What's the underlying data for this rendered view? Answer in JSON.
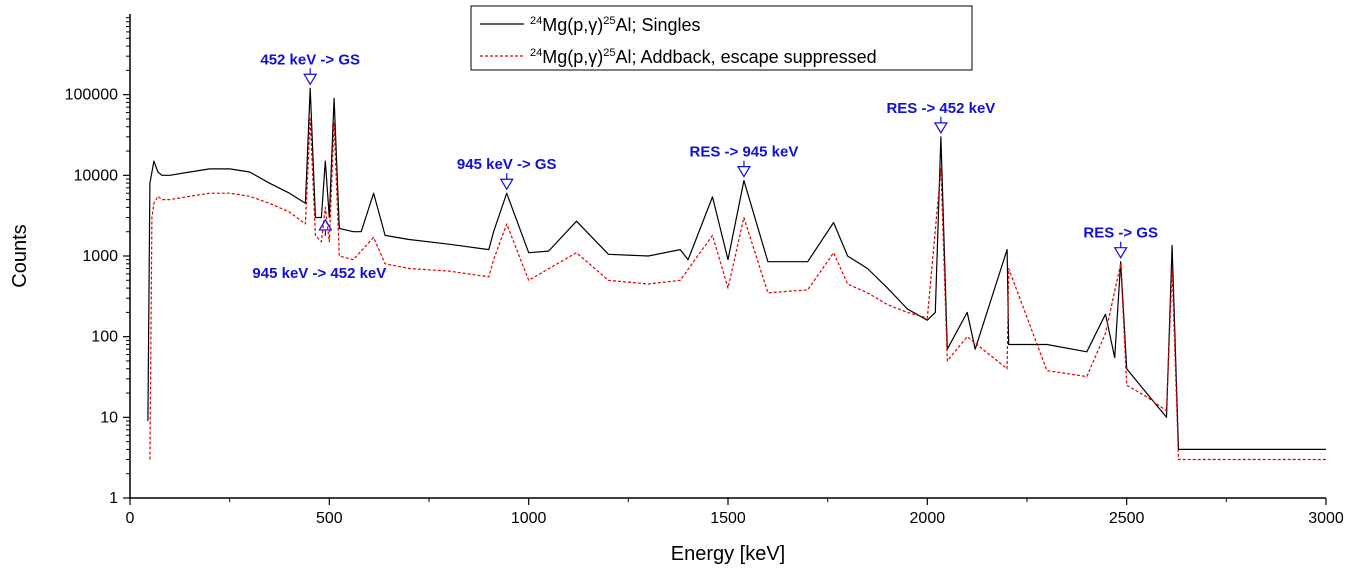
{
  "chart_data": {
    "type": "line",
    "xlabel": "Energy [keV]",
    "ylabel": "Counts",
    "xlim": [
      0,
      3000
    ],
    "ylim": [
      1,
      1000000
    ],
    "yscale": "log",
    "xticks": [
      0,
      500,
      1000,
      1500,
      2000,
      2500,
      3000
    ],
    "yticks": [
      1,
      10,
      100,
      1000,
      10000,
      100000
    ],
    "ytick_labels": [
      "1",
      "10",
      "100",
      "1000",
      "10000",
      "100000"
    ],
    "grid": false,
    "legend_position": "top-center",
    "series": [
      {
        "name": "²⁴Mg(p,γ)²⁵Al; Singles",
        "color": "#000000",
        "style": "solid",
        "x": [
          45,
          50,
          60,
          70,
          80,
          100,
          150,
          200,
          250,
          300,
          350,
          400,
          440,
          452,
          465,
          480,
          490,
          500,
          512,
          525,
          560,
          580,
          611,
          640,
          700,
          800,
          900,
          912,
          945,
          1000,
          1050,
          1120,
          1200,
          1300,
          1380,
          1400,
          1461,
          1500,
          1540,
          1600,
          1700,
          1765,
          1800,
          1850,
          1900,
          1950,
          2000,
          2020,
          2034,
          2050,
          2100,
          2120,
          2200,
          2204,
          2300,
          2400,
          2447,
          2470,
          2485,
          2500,
          2550,
          2600,
          2614,
          2630,
          2700,
          2800,
          2900,
          3000
        ],
        "y": [
          9,
          8000,
          15000,
          11000,
          10000,
          10000,
          11000,
          12000,
          12000,
          11000,
          8000,
          6000,
          4500,
          120000,
          3000,
          3000,
          15000,
          3000,
          90000,
          2200,
          2000,
          2000,
          6000,
          1800,
          1600,
          1400,
          1200,
          2000,
          6000,
          1100,
          1150,
          2700,
          1050,
          1000,
          1200,
          900,
          5400,
          900,
          8600,
          850,
          850,
          2600,
          1000,
          700,
          400,
          220,
          160,
          200,
          30000,
          70,
          200,
          70,
          1200,
          80,
          80,
          65,
          190,
          55,
          850,
          40,
          20,
          10,
          1350,
          4,
          4,
          4,
          4,
          4
        ]
      },
      {
        "name": "²⁴Mg(p,γ)²⁵Al; Addback, escape suppressed",
        "color": "#e00000",
        "style": "dashed",
        "x": [
          50,
          55,
          60,
          70,
          80,
          100,
          150,
          200,
          250,
          300,
          350,
          400,
          440,
          452,
          465,
          480,
          490,
          500,
          512,
          525,
          560,
          611,
          640,
          700,
          800,
          900,
          912,
          945,
          1000,
          1120,
          1200,
          1300,
          1380,
          1461,
          1500,
          1540,
          1600,
          1700,
          1765,
          1800,
          1850,
          1900,
          1950,
          2000,
          2034,
          2050,
          2100,
          2200,
          2204,
          2300,
          2400,
          2447,
          2485,
          2500,
          2550,
          2600,
          2614,
          2630,
          2700,
          2800,
          2900,
          3000
        ],
        "y": [
          3,
          3000,
          4500,
          5500,
          5000,
          5000,
          5500,
          6000,
          6000,
          5500,
          4500,
          3500,
          2500,
          50000,
          1800,
          1500,
          4000,
          1500,
          45000,
          1000,
          900,
          1700,
          800,
          700,
          650,
          550,
          900,
          2500,
          500,
          1100,
          500,
          450,
          500,
          1800,
          400,
          3000,
          350,
          380,
          1100,
          450,
          350,
          250,
          200,
          170,
          12000,
          50,
          100,
          40,
          700,
          38,
          32,
          110,
          800,
          25,
          18,
          12,
          700,
          3,
          3,
          3,
          3,
          3
        ]
      }
    ],
    "annotations": [
      {
        "text": "452 keV -> GS",
        "x": 452,
        "arrow": "down"
      },
      {
        "text": "945 keV -> 452 keV",
        "x": 490,
        "arrow": "up"
      },
      {
        "text": "945 keV -> GS",
        "x": 945,
        "arrow": "down"
      },
      {
        "text": "RES -> 945 keV",
        "x": 1540,
        "arrow": "down"
      },
      {
        "text": "RES -> 452 keV",
        "x": 2034,
        "arrow": "down"
      },
      {
        "text": "RES -> GS",
        "x": 2485,
        "arrow": "down"
      }
    ],
    "legend": {
      "entries": [
        {
          "pre": "24",
          "mid": "Mg(p,γ)",
          "post": "25",
          "tail": "Al; Singles"
        },
        {
          "pre": "24",
          "mid": "Mg(p,γ)",
          "post": "25",
          "tail": "Al; Addback, escape suppressed"
        }
      ]
    }
  }
}
